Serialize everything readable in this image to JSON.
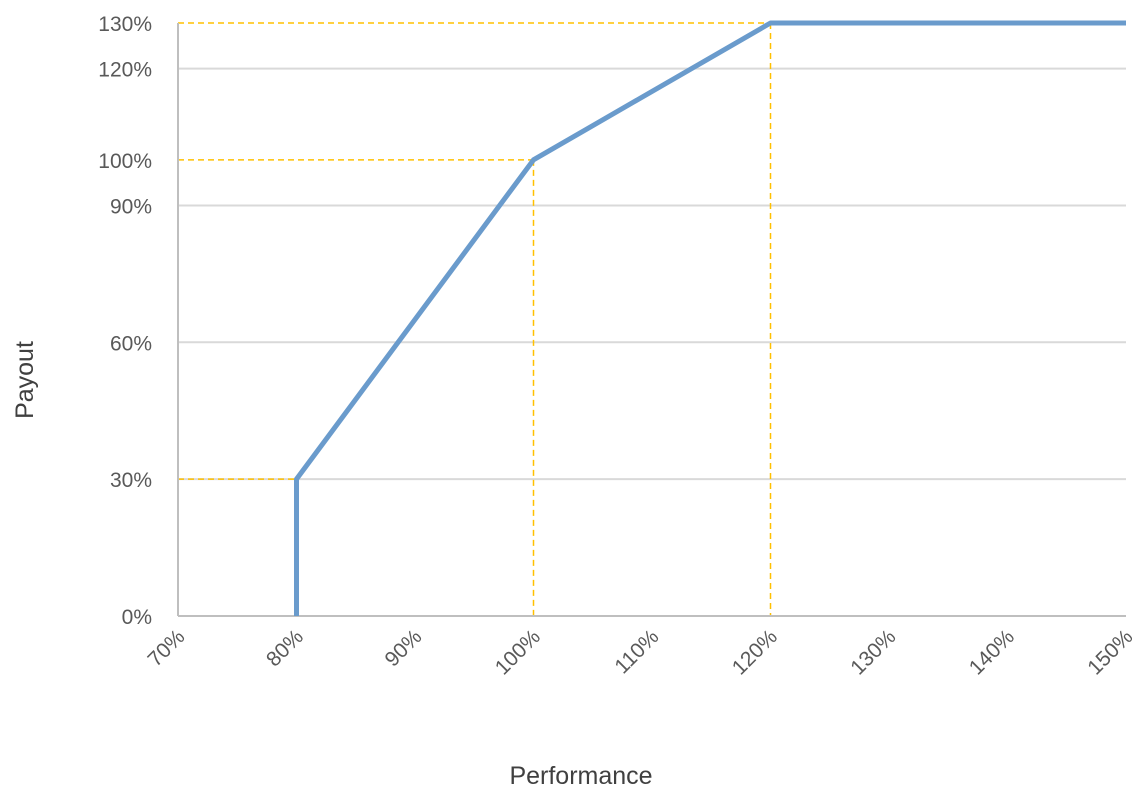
{
  "chart_data": {
    "type": "line",
    "title": "",
    "xlabel": "Performance",
    "ylabel": "Payout",
    "xlim": [
      70,
      150
    ],
    "ylim": [
      0,
      130
    ],
    "x_ticks": [
      70,
      80,
      90,
      100,
      110,
      120,
      130,
      140,
      150
    ],
    "x_tick_labels": [
      "70%",
      "80%",
      "90%",
      "100%",
      "110%",
      "120%",
      "130%",
      "140%",
      "150%"
    ],
    "y_ticks": [
      0,
      30,
      60,
      90,
      100,
      120,
      130
    ],
    "y_tick_labels": [
      "0%",
      "30%",
      "60%",
      "90%",
      "100%",
      "120%",
      "130%"
    ],
    "gridlines_y": [
      30,
      60,
      90,
      120
    ],
    "grid": true,
    "series": [
      {
        "x": [
          80,
          80,
          100,
          120,
          150
        ],
        "y": [
          0,
          30,
          100,
          130,
          130
        ],
        "color": "#6a9bcc"
      }
    ],
    "reference_points": [
      {
        "x": 80,
        "y": 30
      },
      {
        "x": 100,
        "y": 100
      },
      {
        "x": 120,
        "y": 130
      }
    ],
    "reference_line_color": "#ffc000",
    "gridline_color": "#d9d9d9",
    "axis_color": "#bfbfbf"
  }
}
